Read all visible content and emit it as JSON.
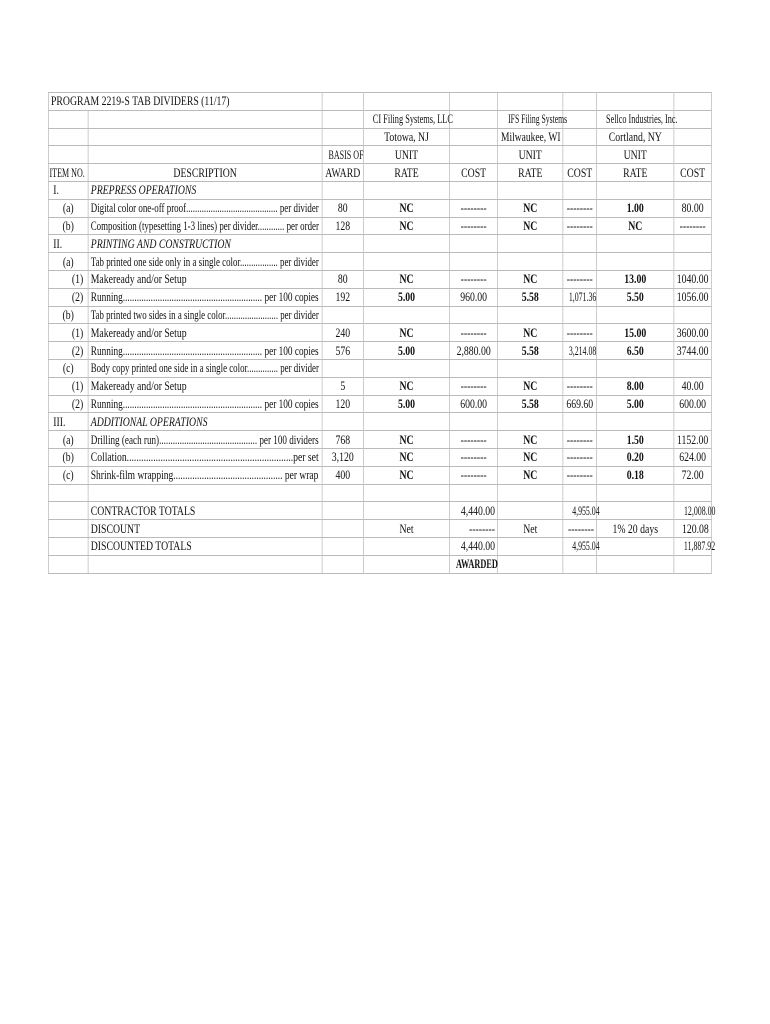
{
  "title": "PROGRAM 2219-S TAB DIVIDERS (11/17)",
  "vendors": [
    {
      "name": "CI Filing Systems, LLC",
      "location": "Totowa, NJ"
    },
    {
      "name": "IFS Filing Systems",
      "location": "Milwaukee, WI"
    },
    {
      "name": "Sellco Industries, Inc.",
      "location": "Cortland, NY"
    }
  ],
  "headers": {
    "basis_top": "BASIS OF",
    "item_no": "ITEM NO.",
    "description": "DESCRIPTION",
    "basis_bottom": "AWARD",
    "unit": "UNIT",
    "rate": "RATE",
    "cost": "COST"
  },
  "rows": [
    {
      "item": "I.",
      "lvl": 1,
      "desc": "PREPRESS OPERATIONS",
      "section": true
    },
    {
      "item": "(a)",
      "lvl": 2,
      "desc": "Digital color one-off proof......................................... per divider",
      "basis": "80",
      "ci_rate": "NC",
      "ci_cost": "--------",
      "ifs_rate": "NC",
      "ifs_cost": "--------",
      "sel_rate": "1.00",
      "sel_cost": "80.00"
    },
    {
      "item": "(b)",
      "lvl": 2,
      "desc": "Composition (typesetting 1-3 lines) per divider............ per order",
      "basis": "128",
      "ci_rate": "NC",
      "ci_cost": "--------",
      "ifs_rate": "NC",
      "ifs_cost": "--------",
      "sel_rate": "NC",
      "sel_cost": "--------"
    },
    {
      "item": "II.",
      "lvl": 1,
      "desc": "PRINTING AND CONSTRUCTION",
      "section": true
    },
    {
      "item": "(a)",
      "lvl": 2,
      "desc": "Tab printed one side only in a single color................. per divider"
    },
    {
      "item": "(1)",
      "lvl": 3,
      "desc": "Makeready and/or Setup",
      "basis": "80",
      "ci_rate": "NC",
      "ci_cost": "--------",
      "ifs_rate": "NC",
      "ifs_cost": "--------",
      "sel_rate": "13.00",
      "sel_cost": "1040.00"
    },
    {
      "item": "(2)",
      "lvl": 3,
      "desc": "Running............................................................ per 100 copies",
      "basis": "192",
      "ci_rate": "5.00",
      "ci_cost": "960.00",
      "ifs_rate": "5.58",
      "ifs_cost": "1,071.36",
      "sel_rate": "5.50",
      "sel_cost": "1056.00"
    },
    {
      "item": "(b)",
      "lvl": 2,
      "desc": "Tab printed two sides in a single color........................ per divider"
    },
    {
      "item": "(1)",
      "lvl": 3,
      "desc": "Makeready and/or Setup",
      "basis": "240",
      "ci_rate": "NC",
      "ci_cost": "--------",
      "ifs_rate": "NC",
      "ifs_cost": "--------",
      "sel_rate": "15.00",
      "sel_cost": "3600.00"
    },
    {
      "item": "(2)",
      "lvl": 3,
      "desc": "Running............................................................ per 100 copies",
      "basis": "576",
      "ci_rate": "5.00",
      "ci_cost": "2,880.00",
      "ifs_rate": "5.58",
      "ifs_cost": "3,214.08",
      "sel_rate": "6.50",
      "sel_cost": "3744.00"
    },
    {
      "item": "(c)",
      "lvl": 2,
      "desc": "Body copy printed one side in a single color.............. per divider"
    },
    {
      "item": "(1)",
      "lvl": 3,
      "desc": "Makeready and/or Setup",
      "basis": "5",
      "ci_rate": "NC",
      "ci_cost": "--------",
      "ifs_rate": "NC",
      "ifs_cost": "--------",
      "sel_rate": "8.00",
      "sel_cost": "40.00"
    },
    {
      "item": "(2)",
      "lvl": 3,
      "desc": "Running............................................................ per 100 copies",
      "basis": "120",
      "ci_rate": "5.00",
      "ci_cost": "600.00",
      "ifs_rate": "5.58",
      "ifs_cost": "669.60",
      "sel_rate": "5.00",
      "sel_cost": "600.00"
    },
    {
      "item": "III.",
      "lvl": 1,
      "desc": "ADDITIONAL OPERATIONS",
      "section": true
    },
    {
      "item": "(a)",
      "lvl": 2,
      "desc": "Drilling (each run)........................................... per 100 dividers",
      "basis": "768",
      "ci_rate": "NC",
      "ci_cost": "--------",
      "ifs_rate": "NC",
      "ifs_cost": "--------",
      "sel_rate": "1.50",
      "sel_cost": "1152.00"
    },
    {
      "item": "(b)",
      "lvl": 2,
      "desc": "Collation.....................................................................per set",
      "basis": "3,120",
      "ci_rate": "NC",
      "ci_cost": "--------",
      "ifs_rate": "NC",
      "ifs_cost": "--------",
      "sel_rate": "0.20",
      "sel_cost": "624.00"
    },
    {
      "item": "(c)",
      "lvl": 2,
      "desc": "Shrink-film wrapping.............................................. per wrap",
      "basis": "400",
      "ci_rate": "NC",
      "ci_cost": "--------",
      "ifs_rate": "NC",
      "ifs_cost": "--------",
      "sel_rate": "0.18",
      "sel_cost": "72.00"
    },
    {},
    {
      "desc": "CONTRACTOR TOTALS",
      "total": true,
      "ci_cost": "4,440.00",
      "ifs_cost": "4,955.04",
      "sel_cost": "12,008.00"
    },
    {
      "desc": "DISCOUNT",
      "total": true,
      "ci_rate": "Net",
      "ci_cost": "--------",
      "ifs_rate": "Net",
      "ifs_cost": "--------",
      "sel_rate": "1% 20 days",
      "sel_cost": "120.08"
    },
    {
      "desc": "DISCOUNTED TOTALS",
      "total": true,
      "ci_cost": "4,440.00",
      "ifs_cost": "4,955.04",
      "sel_cost": "11,887.92"
    },
    {
      "total": true,
      "ci_cost": "AWARDED",
      "awarded": true
    }
  ]
}
